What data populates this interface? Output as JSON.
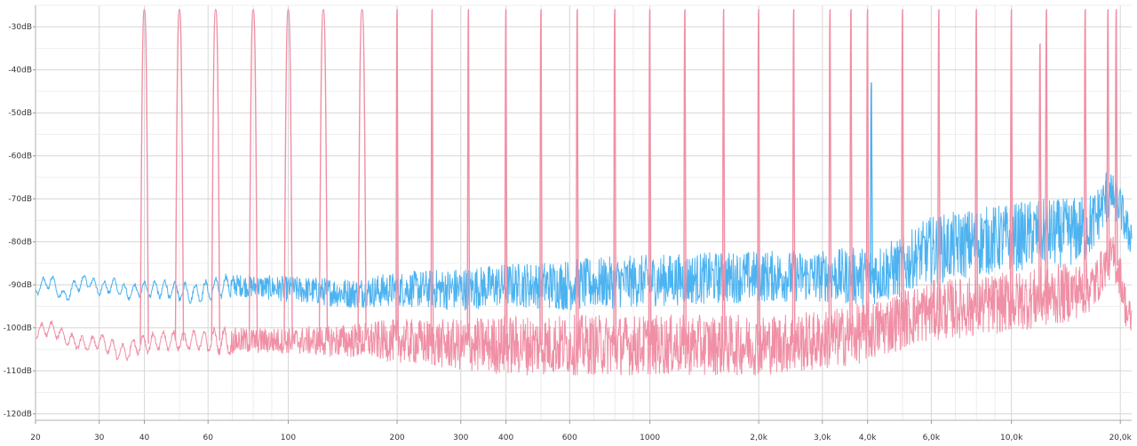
{
  "chart_data": {
    "type": "line",
    "title": "",
    "xlabel": "",
    "ylabel": "",
    "x_scale": "log",
    "xlim": [
      20,
      21500
    ],
    "ylim": [
      -121.5,
      -25
    ],
    "grid": true,
    "legend": "none",
    "y_ticks": [
      {
        "value": -30,
        "label": "-30dB"
      },
      {
        "value": -40,
        "label": "-40dB"
      },
      {
        "value": -50,
        "label": "-50dB"
      },
      {
        "value": -60,
        "label": "-60dB"
      },
      {
        "value": -70,
        "label": "-70dB"
      },
      {
        "value": -80,
        "label": "-80dB"
      },
      {
        "value": -90,
        "label": "-90dB"
      },
      {
        "value": -100,
        "label": "-100dB"
      },
      {
        "value": -110,
        "label": "-110dB"
      },
      {
        "value": -120,
        "label": "-120dB"
      }
    ],
    "x_ticks": [
      {
        "value": 20,
        "label": "20"
      },
      {
        "value": 30,
        "label": "30"
      },
      {
        "value": 40,
        "label": "40"
      },
      {
        "value": 60,
        "label": "60"
      },
      {
        "value": 100,
        "label": "100"
      },
      {
        "value": 200,
        "label": "200"
      },
      {
        "value": 300,
        "label": "300"
      },
      {
        "value": 400,
        "label": "400"
      },
      {
        "value": 600,
        "label": "600"
      },
      {
        "value": 1000,
        "label": "1000"
      },
      {
        "value": 2000,
        "label": "2,0k"
      },
      {
        "value": 3000,
        "label": "3,0k"
      },
      {
        "value": 4000,
        "label": "4,0k"
      },
      {
        "value": 6000,
        "label": "6,0k"
      },
      {
        "value": 10000,
        "label": "10,0k"
      },
      {
        "value": 20000,
        "label": "20,0k"
      }
    ],
    "series": [
      {
        "color": "#4db3f0",
        "x": [
          20,
          22,
          24,
          26,
          28,
          30,
          33,
          36,
          39,
          45,
          55,
          70,
          100,
          150,
          200,
          300,
          400,
          600,
          1000,
          2000,
          3000,
          4000,
          5000,
          5500,
          6000,
          7000,
          8000,
          10000,
          12000,
          14000,
          16000,
          17000,
          18000,
          19000,
          20000,
          21000
        ],
        "y": [
          -91,
          -89,
          -93,
          -90,
          -89,
          -91,
          -90,
          -92,
          -91,
          -91,
          -92,
          -90,
          -91,
          -92,
          -91,
          -91,
          -90,
          -90,
          -89,
          -88,
          -88,
          -88,
          -86,
          -83,
          -82,
          -81,
          -80,
          -79,
          -78,
          -78,
          -77,
          -75,
          -71,
          -69,
          -72,
          -78
        ],
        "noise_db": [
          1.5,
          1.5,
          1.5,
          1.5,
          1.5,
          1.5,
          1.5,
          1.5,
          1.5,
          2,
          2,
          2.5,
          3,
          3.5,
          4,
          5,
          5,
          6,
          6,
          6,
          6,
          7,
          7,
          7,
          8,
          8,
          8,
          8,
          8,
          8,
          8,
          7,
          6,
          5,
          5,
          5
        ]
      },
      {
        "color": "#f08fa5",
        "x": [
          20,
          22,
          25,
          28,
          30,
          33,
          35,
          38,
          45,
          55,
          70,
          100,
          150,
          200,
          300,
          400,
          600,
          1000,
          1500,
          2000,
          3000,
          4000,
          5000,
          6000,
          8000,
          10000,
          12000,
          14000,
          16000,
          17000,
          18000,
          19000,
          20000,
          21000
        ],
        "y": [
          -101,
          -100,
          -103,
          -104,
          -103,
          -105,
          -106,
          -104,
          -103,
          -103,
          -103,
          -103,
          -103,
          -103,
          -104,
          -104,
          -104,
          -104,
          -104,
          -104,
          -103,
          -101,
          -98,
          -96,
          -95,
          -94,
          -93,
          -92,
          -91,
          -90,
          -86,
          -83,
          -88,
          -98
        ],
        "noise_db": [
          1.5,
          1.5,
          1.5,
          1.5,
          1.5,
          2,
          2,
          2,
          2,
          2,
          3,
          3,
          4,
          5,
          6,
          7,
          7,
          7,
          7,
          7,
          7,
          7,
          7,
          7,
          7,
          7,
          7,
          7,
          6,
          6,
          5,
          5,
          5,
          5
        ]
      }
    ],
    "harmonic_spikes": {
      "color": "#f08fa5",
      "frequencies": [
        40,
        50,
        63,
        80,
        100,
        125,
        160,
        200,
        250,
        315,
        400,
        500,
        630,
        800,
        1000,
        1250,
        1600,
        2000,
        2500,
        3150,
        3600,
        4000,
        5000,
        6300,
        8000,
        10000,
        12000,
        12500,
        16000,
        18500,
        19500
      ],
      "peak_db": [
        -26,
        -26,
        -26,
        -26,
        -26,
        -26,
        -26,
        -26,
        -26,
        -26,
        -26,
        -26,
        -26,
        -26,
        -26,
        -26,
        -26,
        -26,
        -26,
        -26,
        -26,
        -26,
        -26,
        -26,
        -26,
        -26,
        -34,
        -26,
        -26,
        -26,
        -26
      ]
    },
    "blue_spikes": {
      "color": "#4db3f0",
      "frequencies": [
        4100,
        18300,
        19000
      ],
      "peak_db": [
        -43,
        -64,
        -67
      ]
    }
  }
}
